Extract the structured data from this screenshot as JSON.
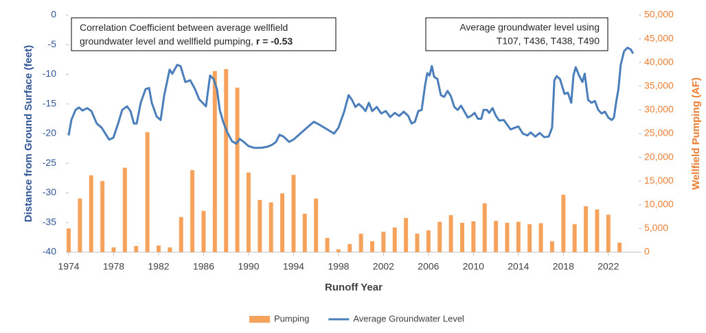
{
  "chart_data": {
    "type": "combo",
    "x_label": "Runoff Year",
    "y_label": "Distance from Ground Surface (feet)",
    "y2_label": "Wellfield Pumping (AF)",
    "annotations": [
      {
        "lines": [
          "Correlation Coefficient between average wellfield",
          "groundwater level and wellfield pumping, "
        ],
        "emphasis": "r = -0.53"
      },
      {
        "lines": [
          "Average groundwater level using",
          "T107, T436, T438, T490"
        ]
      }
    ],
    "xlim": [
      1974,
      2024.7
    ],
    "xticks": [
      1974,
      1978,
      1982,
      1986,
      1990,
      1994,
      1998,
      2002,
      2006,
      2010,
      2014,
      2018,
      2022
    ],
    "ylim": [
      -40,
      0
    ],
    "yticks": [
      0,
      -5,
      -10,
      -15,
      -20,
      -25,
      -30,
      -35,
      -40
    ],
    "y2lim": [
      0,
      50000
    ],
    "y2ticks": [
      0,
      {
        "value": 5000,
        "label": "5,000"
      },
      {
        "value": 10000,
        "label": "10,000"
      },
      {
        "value": 15000,
        "label": "15,000"
      },
      {
        "value": 20000,
        "label": "20,000"
      },
      {
        "value": 25000,
        "label": "25,000"
      },
      {
        "value": 30000,
        "label": "30,000"
      },
      {
        "value": 35000,
        "label": "35,000"
      },
      {
        "value": 40000,
        "label": "40,000"
      },
      {
        "value": 45000,
        "label": "45,000"
      },
      {
        "value": 50000,
        "label": "50,000"
      }
    ],
    "grid": false,
    "legend": "bottom",
    "series": [
      {
        "name": "Pumping",
        "type": "bar",
        "axis": "y2",
        "color": "#f5a35c",
        "x": [
          1974,
          1975,
          1976,
          1977,
          1978,
          1979,
          1980,
          1981,
          1982,
          1983,
          1984,
          1985,
          1986,
          1987,
          1988,
          1989,
          1990,
          1991,
          1992,
          1993,
          1994,
          1995,
          1996,
          1997,
          1998,
          1999,
          2000,
          2001,
          2002,
          2003,
          2004,
          2005,
          2006,
          2007,
          2008,
          2009,
          2010,
          2011,
          2012,
          2013,
          2014,
          2015,
          2016,
          2017,
          2018,
          2019,
          2020,
          2021,
          2022,
          2023
        ],
        "values": [
          5000,
          11300,
          16200,
          15000,
          1000,
          17800,
          1300,
          25300,
          1400,
          1000,
          7400,
          17300,
          8700,
          38200,
          38600,
          34700,
          16800,
          11000,
          10500,
          12400,
          16300,
          8100,
          11300,
          3000,
          600,
          1700,
          3900,
          2300,
          4300,
          5200,
          7200,
          3900,
          4600,
          6400,
          7800,
          6200,
          6500,
          10300,
          6600,
          6200,
          6400,
          5900,
          6100,
          2300,
          12100,
          5900,
          9700,
          9000,
          7900,
          2000
        ]
      },
      {
        "name": "Average Groundwater Level",
        "type": "line",
        "color": "#4a7ebb",
        "x": [
          1974.0,
          1974.24,
          1974.61,
          1974.92,
          1975.22,
          1975.65,
          1976.02,
          1976.5,
          1976.93,
          1977.3,
          1977.6,
          1977.97,
          1978.4,
          1978.76,
          1979.19,
          1979.5,
          1979.8,
          1980.05,
          1980.41,
          1980.84,
          1981.15,
          1981.39,
          1981.82,
          1982.18,
          1982.49,
          1982.98,
          1983.22,
          1983.65,
          1983.95,
          1984.38,
          1984.81,
          1985.24,
          1985.6,
          1985.91,
          1986.21,
          1986.58,
          1986.89,
          1987.19,
          1987.44,
          1987.74,
          1988.11,
          1988.53,
          1988.9,
          1989.21,
          1989.57,
          1990.0,
          1990.49,
          1991.1,
          1991.71,
          1992.08,
          1992.44,
          1992.75,
          1993.11,
          1993.6,
          1994.0,
          1994.6,
          1995.2,
          1995.8,
          1996.3,
          1997.0,
          1997.6,
          1998.0,
          1998.5,
          1998.9,
          1999.2,
          1999.5,
          1999.8,
          2000.1,
          2000.4,
          2000.7,
          2001.0,
          2001.4,
          2001.8,
          2002.2,
          2002.6,
          2003.0,
          2003.4,
          2003.8,
          2004.2,
          2004.5,
          2004.8,
          2005.1,
          2005.4,
          2005.7,
          2005.9,
          2006.1,
          2006.3,
          2006.5,
          2006.8,
          2007.1,
          2007.4,
          2007.7,
          2008.0,
          2008.3,
          2008.6,
          2008.9,
          2009.2,
          2009.5,
          2009.8,
          2010.1,
          2010.4,
          2010.7,
          2010.9,
          2011.2,
          2011.4,
          2011.7,
          2012.0,
          2012.3,
          2012.7,
          2013.0,
          2013.3,
          2013.7,
          2014.0,
          2014.4,
          2014.8,
          2015.1,
          2015.5,
          2015.9,
          2016.3,
          2016.7,
          2017.0,
          2017.2,
          2017.4,
          2017.7,
          2018.1,
          2018.4,
          2018.7,
          2018.9,
          2019.1,
          2019.4,
          2019.7,
          2019.9,
          2020.2,
          2020.5,
          2020.8,
          2021.1,
          2021.4,
          2021.7,
          2022.0,
          2022.3,
          2022.5,
          2022.7,
          2022.9,
          2023.1,
          2023.4,
          2023.7,
          2024.0,
          2024.2
        ],
        "values": [
          -20.3,
          -17.7,
          -16.0,
          -15.6,
          -16.1,
          -15.7,
          -16.2,
          -18.3,
          -19.0,
          -20.1,
          -21.0,
          -20.7,
          -18.3,
          -16.0,
          -15.4,
          -16.2,
          -18.3,
          -18.3,
          -14.8,
          -12.5,
          -12.3,
          -14.8,
          -17.1,
          -17.7,
          -13.6,
          -9.2,
          -9.9,
          -8.4,
          -8.6,
          -11.3,
          -11.0,
          -12.5,
          -14.2,
          -14.8,
          -15.4,
          -10.2,
          -10.8,
          -12.5,
          -16.0,
          -18.0,
          -19.8,
          -21.3,
          -21.7,
          -20.9,
          -21.4,
          -22.1,
          -22.4,
          -22.4,
          -22.2,
          -21.9,
          -21.4,
          -20.2,
          -20.5,
          -21.4,
          -21.0,
          -20.0,
          -19.0,
          -18.0,
          -18.5,
          -19.3,
          -20.0,
          -19.0,
          -16.3,
          -13.5,
          -14.3,
          -15.5,
          -15.0,
          -15.5,
          -16.2,
          -14.8,
          -16.2,
          -15.5,
          -16.6,
          -16.2,
          -17.2,
          -16.5,
          -17.0,
          -16.3,
          -17.0,
          -18.3,
          -18.0,
          -16.2,
          -16.0,
          -11.8,
          -9.8,
          -10.2,
          -8.6,
          -10.4,
          -10.8,
          -13.5,
          -13.8,
          -12.8,
          -13.7,
          -15.5,
          -16.0,
          -15.3,
          -16.3,
          -17.3,
          -17.0,
          -16.5,
          -17.5,
          -17.5,
          -16.0,
          -16.0,
          -16.5,
          -15.7,
          -17.0,
          -17.8,
          -17.7,
          -18.5,
          -19.3,
          -19.0,
          -18.8,
          -20.0,
          -20.3,
          -19.8,
          -20.5,
          -19.9,
          -20.6,
          -20.5,
          -19.0,
          -11.0,
          -10.3,
          -10.8,
          -13.3,
          -13.1,
          -14.8,
          -10.2,
          -8.8,
          -10.2,
          -11.3,
          -9.9,
          -14.3,
          -14.8,
          -14.5,
          -16.0,
          -16.6,
          -16.3,
          -17.3,
          -17.7,
          -17.3,
          -14.6,
          -12.5,
          -8.4,
          -6.1,
          -5.5,
          -5.8,
          -6.5
        ]
      }
    ]
  }
}
